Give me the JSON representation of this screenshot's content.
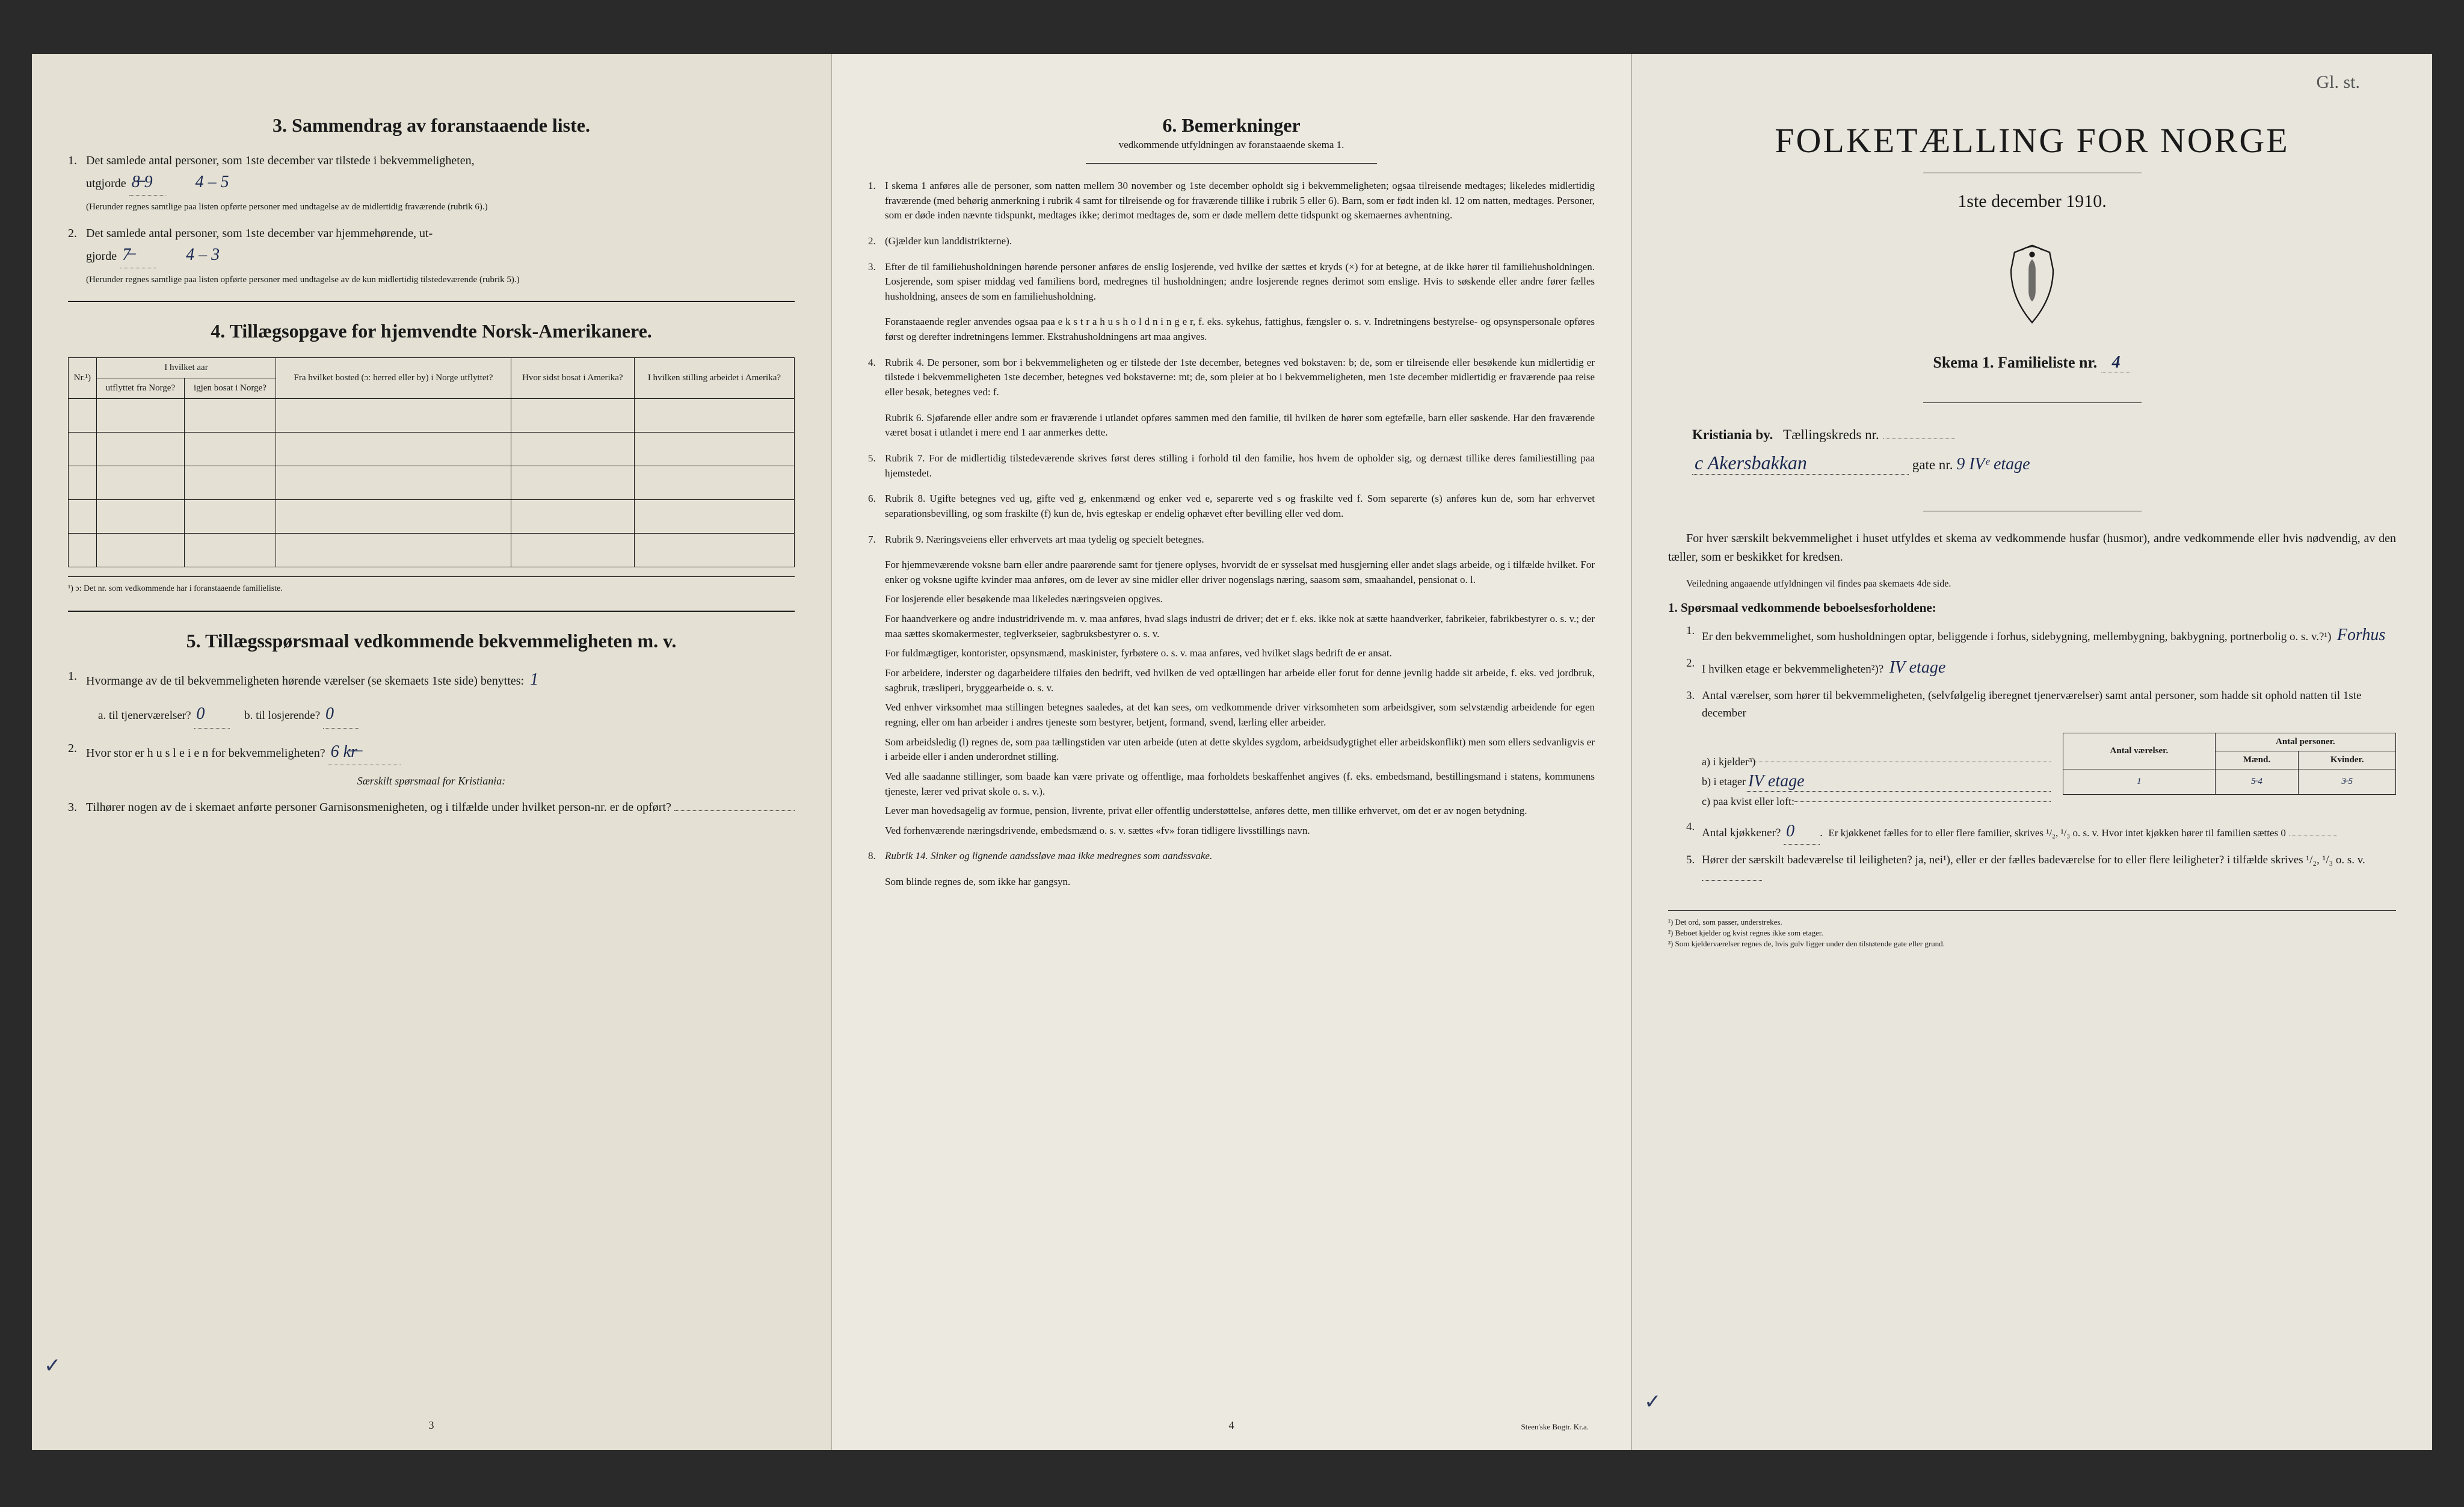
{
  "panel1": {
    "section3_title": "3.   Sammendrag av foranstaaende liste.",
    "item1": "Det samlede antal personer, som 1ste december var tilstede i bekvemmeligheten,",
    "item1_prefix": "utgjorde",
    "item1_hw1": "8̶  9",
    "item1_hw2": "4 – 5",
    "item1_note": "(Herunder regnes samtlige paa listen opførte personer med undtagelse av de midlertidig fraværende (rubrik 6).)",
    "item2": "Det samlede antal personer, som 1ste december var hjemmehørende, ut-",
    "item2_prefix": "gjorde",
    "item2_hw1": "7̶",
    "item2_hw2": "4 – 3",
    "item2_note": "(Herunder regnes samtlige paa listen opførte personer med undtagelse av de kun midlertidig tilstedeværende (rubrik 5).)",
    "section4_title": "4.   Tillægsopgave for hjemvendte Norsk-Amerikanere.",
    "t4_headers": {
      "nr": "Nr.¹)",
      "col1_top": "I hvilket aar",
      "col1a": "utflyttet fra Norge?",
      "col1b": "igjen bosat i Norge?",
      "col2": "Fra hvilket bosted (ɔ: herred eller by) i Norge utflyttet?",
      "col3": "Hvor sidst bosat i Amerika?",
      "col4": "I hvilken stilling arbeidet i Amerika?"
    },
    "t4_footnote": "¹) ɔ: Det nr. som vedkommende har i foranstaaende familieliste.",
    "section5_title": "5.   Tillægsspørsmaal vedkommende bekvemmeligheten m. v.",
    "s5_item1": "Hvormange av de til bekvemmeligheten hørende værelser (se skemaets 1ste side) benyttes:",
    "s5_hw_count": "1",
    "s5_a": "a.  til tjenerværelser?",
    "s5_a_hw": "0",
    "s5_b": "b.  til losjerende?",
    "s5_b_hw": "0",
    "s5_item2": "Hvor stor er h u s l e i e n for bekvemmeligheten?",
    "s5_hw_rent": "6 k̶r̶",
    "s5_italic": "Særskilt spørsmaal for Kristiania:",
    "s5_item3": "Tilhører nogen av de i skemaet anførte personer Garnisonsmenigheten, og i tilfælde under hvilket person-nr. er de opført?",
    "page": "3"
  },
  "panel2": {
    "title": "6.   Bemerkninger",
    "subtitle": "vedkommende utfyldningen av foranstaaende skema 1.",
    "items": [
      {
        "n": "1.",
        "t": "I skema 1 anføres alle de personer, som natten mellem 30 november og 1ste december opholdt sig i bekvemmeligheten; ogsaa tilreisende medtages; likeledes midlertidig fraværende (med behørig anmerkning i rubrik 4 samt for tilreisende og for fraværende tillike i rubrik 5 eller 6). Barn, som er født inden kl. 12 om natten, medtages. Personer, som er døde inden nævnte tidspunkt, medtages ikke; derimot medtages de, som er døde mellem dette tidspunkt og skemaernes avhentning."
      },
      {
        "n": "2.",
        "t": "(Gjælder kun landdistrikterne)."
      },
      {
        "n": "3.",
        "t": "Efter de til familiehusholdningen hørende personer anføres de enslig losjerende, ved hvilke der sættes et kryds (×) for at betegne, at de ikke hører til familiehusholdningen. Losjerende, som spiser middag ved familiens bord, medregnes til husholdningen; andre losjerende regnes derimot som enslige. Hvis to søskende eller andre fører fælles husholdning, ansees de som en familiehusholdning."
      },
      {
        "n": "",
        "t": "Foranstaaende regler anvendes ogsaa paa e k s t r a h u s h o l d n i n g e r, f. eks. sykehus, fattighus, fængsler o. s. v. Indretningens bestyrelse- og opsynspersonale opføres først og derefter indretningens lemmer. Ekstrahusholdningens art maa angives."
      },
      {
        "n": "4.",
        "t": "Rubrik 4. De personer, som bor i bekvemmeligheten og er tilstede der 1ste december, betegnes ved bokstaven: b; de, som er tilreisende eller besøkende kun midlertidig er tilstede i bekvemmeligheten 1ste december, betegnes ved bokstaverne: mt; de, som pleier at bo i bekvemmeligheten, men 1ste december midlertidig er fraværende paa reise eller besøk, betegnes ved: f."
      },
      {
        "n": "",
        "t": "Rubrik 6. Sjøfarende eller andre som er fraværende i utlandet opføres sammen med den familie, til hvilken de hører som egtefælle, barn eller søskende. Har den fraværende været bosat i utlandet i mere end 1 aar anmerkes dette."
      },
      {
        "n": "5.",
        "t": "Rubrik 7. For de midlertidig tilstedeværende skrives først deres stilling i forhold til den familie, hos hvem de opholder sig, og dernæst tillike deres familiestilling paa hjemstedet."
      },
      {
        "n": "6.",
        "t": "Rubrik 8. Ugifte betegnes ved ug, gifte ved g, enkenmænd og enker ved e, separerte ved s og fraskilte ved f. Som separerte (s) anføres kun de, som har erhvervet separationsbevilling, og som fraskilte (f) kun de, hvis egteskap er endelig ophævet efter bevilling eller ved dom."
      },
      {
        "n": "7.",
        "t": "Rubrik 9. Næringsveiens eller erhvervets art maa tydelig og specielt betegnes."
      }
    ],
    "paras": [
      "For hjemmeværende voksne barn eller andre paarørende samt for tjenere oplyses, hvorvidt de er sysselsat med husgjerning eller andet slags arbeide, og i tilfælde hvilket. For enker og voksne ugifte kvinder maa anføres, om de lever av sine midler eller driver nogenslags næring, saasom søm, smaahandel, pensionat o. l.",
      "For losjerende eller besøkende maa likeledes næringsveien opgives.",
      "For haandverkere og andre industridrivende m. v. maa anføres, hvad slags industri de driver; det er f. eks. ikke nok at sætte haandverker, fabrikeier, fabrikbestyrer o. s. v.; der maa sættes skomakermester, teglverkseier, sagbruksbestyrer o. s. v.",
      "For fuldmægtiger, kontorister, opsynsmænd, maskinister, fyrbøtere o. s. v. maa anføres, ved hvilket slags bedrift de er ansat.",
      "For arbeidere, inderster og dagarbeidere tilføies den bedrift, ved hvilken de ved optællingen har arbeide eller forut for denne jevnlig hadde sit arbeide, f. eks. ved jordbruk, sagbruk, træsliperi, bryggearbeide o. s. v.",
      "Ved enhver virksomhet maa stillingen betegnes saaledes, at det kan sees, om vedkommende driver virksomheten som arbeidsgiver, som selvstændig arbeidende for egen regning, eller om han arbeider i andres tjeneste som bestyrer, betjent, formand, svend, lærling eller arbeider.",
      "Som arbeidsledig (l) regnes de, som paa tællingstiden var uten arbeide (uten at dette skyldes sygdom, arbeidsudygtighet eller arbeidskonflikt) men som ellers sedvanligvis er i arbeide eller i anden underordnet stilling.",
      "Ved alle saadanne stillinger, som baade kan være private og offentlige, maa forholdets beskaffenhet angives (f. eks. embedsmand, bestillingsmand i statens, kommunens tjeneste, lærer ved privat skole o. s. v.).",
      "Lever man hovedsagelig av formue, pension, livrente, privat eller offentlig understøttelse, anføres dette, men tillike erhvervet, om det er av nogen betydning.",
      "Ved forhenværende næringsdrivende, embedsmænd o. s. v. sættes «fv» foran tidligere livsstillings navn."
    ],
    "item8": "Rubrik 14. Sinker og lignende aandssløve maa ikke medregnes som aandssvake.",
    "last": "Som blinde regnes de, som ikke har gangsyn.",
    "page": "4",
    "printer": "Steen'ske Bogtr.  Kr.a."
  },
  "panel3": {
    "corner": "Gl. st.",
    "title": "FOLKETÆLLING FOR NORGE",
    "subtitle": "1ste december 1910.",
    "schema": "Skema 1.   Familieliste nr.",
    "schema_hw": "4",
    "city": "Kristiania by.",
    "city_label": "Tællingskreds nr.",
    "address_hw": "c Akersbakkan",
    "gate_label": "gate nr.",
    "gate_hw": "9 IVᵉ etage",
    "intro": "For hver særskilt bekvemmelighet i huset utfyldes et skema av vedkommende husfar (husmor), andre vedkommende eller hvis nødvendig, av den tæller, som er beskikket for kredsen.",
    "vedl": "Veiledning angaaende utfyldningen vil findes paa skemaets 4de side.",
    "q1_title": "1. Spørsmaal vedkommende beboelsesforholdene:",
    "q1_1": "Er den bekvemmelighet, som husholdningen optar, beliggende i forhus, sidebygning, mellembygning, bakbygning, portnerbolig o. s. v.?¹)",
    "q1_1_hw": "Forhus",
    "q1_2": "I hvilken etage er bekvemmeligheten²)?",
    "q1_2_hw": "IV etage",
    "q1_3": "Antal værelser, som hører til bekvemmeligheten, (selvfølgelig iberegnet tjenerværelser) samt antal personer, som hadde sit ophold natten til 1ste december",
    "mini_headers": {
      "h1": "Antal værelser.",
      "h2": "Antal personer.",
      "h2a": "Mænd.",
      "h2b": "Kvinder."
    },
    "abc": {
      "a": "a) i kjelder³)",
      "b": "b) i etager",
      "c": "c) paa kvist eller loft:"
    },
    "abc_hw": {
      "b_etage": "IV etage",
      "b_v": "1",
      "b_m": "5̶ 4",
      "b_k": "3̶ 5"
    },
    "q1_4": "Antal kjøkkener?",
    "q1_4_hw": "0",
    "q1_4_rest": "Er kjøkkenet fælles for to eller flere familier, skrives ¹/₂, ¹/₃ o. s. v.  Hvor intet kjøkken hører til familien sættes 0",
    "q1_5": "Hører der særskilt badeværelse til leiligheten?  ja, nei¹), eller er der fælles badeværelse for to eller flere leiligheter?  i tilfælde skrives ¹/₂, ¹/₃ o. s. v.",
    "footnotes": [
      "¹) Det ord, som passer, understrekes.",
      "²) Beboet kjelder og kvist regnes ikke som etager.",
      "³) Som kjelderværelser regnes de, hvis gulv ligger under den tilstøtende gate eller grund."
    ]
  },
  "colors": {
    "paper": "#e8e5dc",
    "ink": "#1a1a1a",
    "handwriting": "#1a2850",
    "bg": "#2a2a2a"
  }
}
